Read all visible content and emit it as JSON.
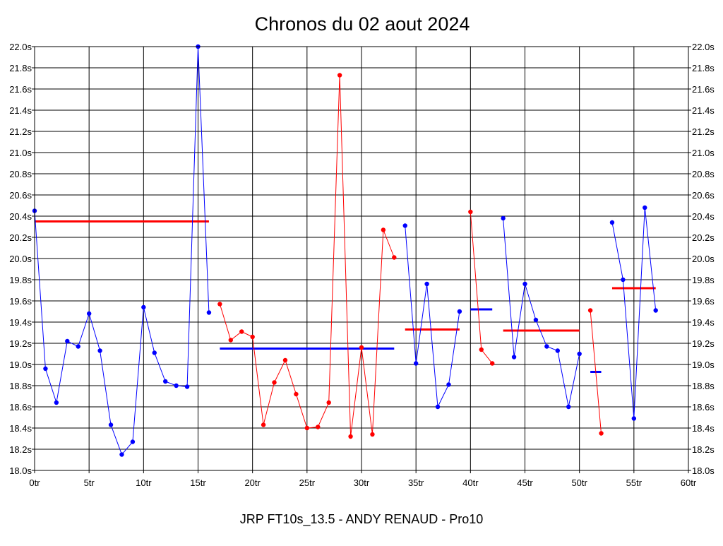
{
  "chart_data": {
    "type": "line",
    "title": "Chronos du 02 aout 2024",
    "footer": "JRP FT10s_13.5 - ANDY RENAUD - Pro10",
    "xlim": [
      0,
      60
    ],
    "ylim": [
      18.0,
      22.0
    ],
    "x_ticks": [
      "0tr",
      "5tr",
      "10tr",
      "15tr",
      "20tr",
      "25tr",
      "30tr",
      "35tr",
      "40tr",
      "45tr",
      "50tr",
      "55tr",
      "60tr"
    ],
    "y_ticks": [
      "18.0s",
      "18.2s",
      "18.4s",
      "18.6s",
      "18.8s",
      "19.0s",
      "19.2s",
      "19.4s",
      "19.6s",
      "19.8s",
      "20.0s",
      "20.2s",
      "20.4s",
      "20.6s",
      "20.8s",
      "21.0s",
      "21.2s",
      "21.4s",
      "21.6s",
      "21.8s",
      "22.0s"
    ],
    "grid": true,
    "colors": {
      "blue": "#0000ff",
      "red": "#ff0000"
    },
    "series": [
      {
        "color": "blue",
        "x": [
          0,
          1,
          2,
          3,
          4,
          5,
          6,
          7,
          8,
          9,
          10,
          11,
          12,
          13,
          14,
          15,
          16
        ],
        "y": [
          20.45,
          18.96,
          18.64,
          19.22,
          19.17,
          19.48,
          19.13,
          18.43,
          18.15,
          18.27,
          19.54,
          19.11,
          18.84,
          18.8,
          18.79,
          22.0,
          19.49
        ]
      },
      {
        "color": "red",
        "x": [
          17,
          18,
          19,
          20,
          21,
          22,
          23,
          24,
          25,
          26,
          27,
          28,
          29,
          30,
          31,
          32,
          33
        ],
        "y": [
          19.57,
          19.23,
          19.31,
          19.26,
          18.43,
          18.83,
          19.04,
          18.72,
          18.4,
          18.41,
          18.64,
          21.73,
          18.32,
          19.16,
          18.34,
          20.27,
          20.01
        ]
      },
      {
        "color": "blue",
        "x": [
          34,
          35,
          36,
          37,
          38,
          39
        ],
        "y": [
          20.31,
          19.01,
          19.76,
          18.6,
          18.81,
          19.5
        ]
      },
      {
        "color": "red",
        "x": [
          40,
          41,
          42
        ],
        "y": [
          20.44,
          19.14,
          19.01
        ]
      },
      {
        "color": "blue",
        "x": [
          43,
          44,
          45,
          46,
          47,
          48,
          49,
          50
        ],
        "y": [
          20.38,
          19.07,
          19.76,
          19.42,
          19.17,
          19.13,
          18.6,
          19.1
        ]
      },
      {
        "color": "red",
        "x": [
          51,
          52
        ],
        "y": [
          19.51,
          18.35
        ]
      },
      {
        "color": "blue",
        "x": [
          53,
          54,
          55,
          56,
          57
        ],
        "y": [
          20.34,
          19.8,
          18.49,
          20.48,
          19.51
        ]
      }
    ],
    "averages": [
      {
        "color": "red",
        "x": [
          0,
          16
        ],
        "y": 20.35
      },
      {
        "color": "blue",
        "x": [
          17,
          33
        ],
        "y": 19.15
      },
      {
        "color": "red",
        "x": [
          34,
          39
        ],
        "y": 19.33
      },
      {
        "color": "blue",
        "x": [
          40,
          42
        ],
        "y": 19.52
      },
      {
        "color": "red",
        "x": [
          43,
          50
        ],
        "y": 19.32
      },
      {
        "color": "blue",
        "x": [
          51,
          52
        ],
        "y": 18.93
      },
      {
        "color": "red",
        "x": [
          53,
          57
        ],
        "y": 19.72
      }
    ]
  }
}
